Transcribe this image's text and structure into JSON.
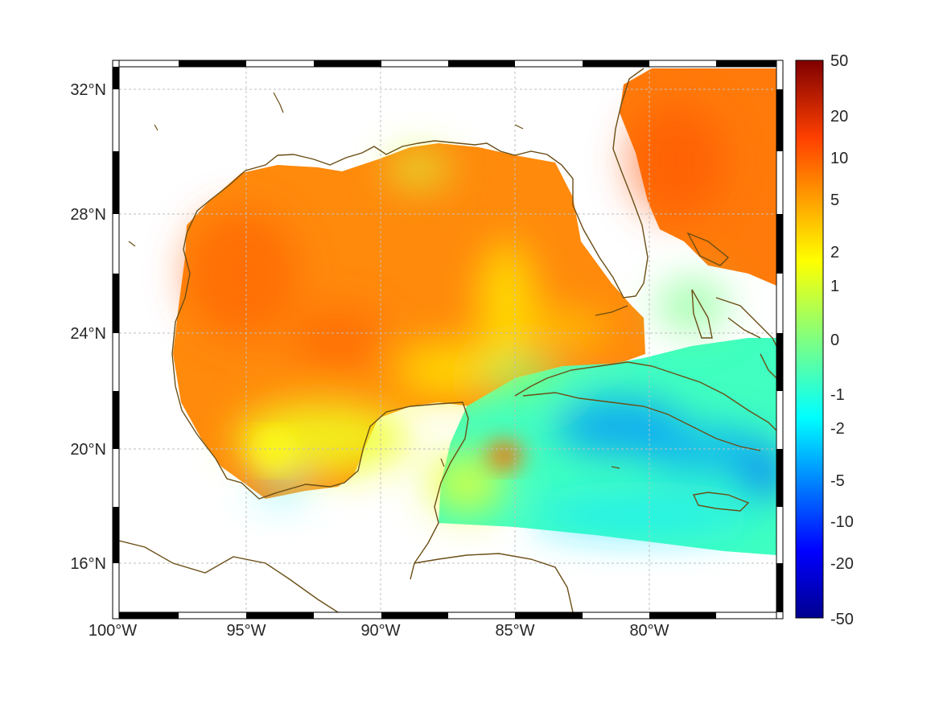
{
  "map": {
    "lat_ticks": [
      "32°N",
      "28°N",
      "24°N",
      "20°N",
      "16°N"
    ],
    "lon_ticks": [
      "100°W",
      "95°W",
      "90°W",
      "85°W",
      "80°W"
    ],
    "extent": {
      "lon_min": -100,
      "lon_max": -75,
      "lat_min": 14.5,
      "lat_max": 33
    }
  },
  "colorbar": {
    "labels": [
      "50",
      "20",
      "10",
      "5",
      "2",
      "1",
      "0",
      "-1",
      "-2",
      "-5",
      "-10",
      "-20",
      "-50"
    ],
    "colormap": "jet",
    "colors": [
      "#7f0000",
      "#ff0000",
      "#ff8000",
      "#ffff00",
      "#80ff80",
      "#00ffff",
      "#0080ff",
      "#0000ff",
      "#00008f"
    ]
  },
  "colors": {
    "coastline": "#6b4e16",
    "frame": "#000000",
    "grid": "#bfbfbf"
  }
}
